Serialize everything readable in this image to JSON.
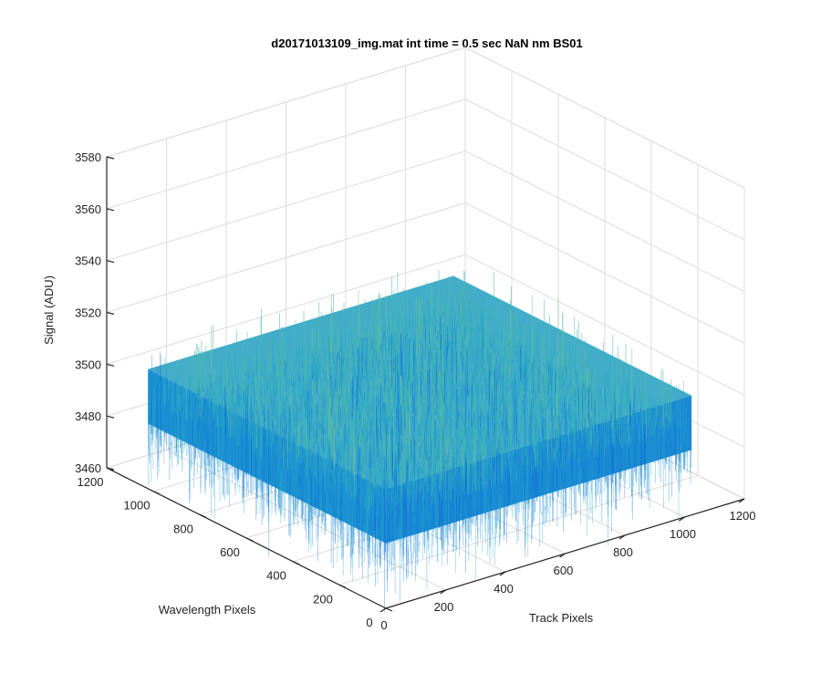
{
  "chart_data": {
    "type": "surface",
    "title": "d20171013109_img.mat int time = 0.5 sec  NaN nm BS01",
    "xlabel": "Track Pixels",
    "ylabel": "Wavelength Pixels",
    "zlabel": "Signal (ADU)",
    "xlim": [
      0,
      1200
    ],
    "ylim": [
      0,
      1200
    ],
    "zlim": [
      3460,
      3580
    ],
    "x_ticks": [
      "0",
      "200",
      "400",
      "600",
      "800",
      "1000",
      "1200"
    ],
    "y_ticks": [
      "0",
      "200",
      "400",
      "600",
      "800",
      "1000",
      "1200"
    ],
    "z_ticks": [
      "3460",
      "3480",
      "3500",
      "3520",
      "3540",
      "3560",
      "3580"
    ],
    "data_extent": {
      "x": [
        1,
        1024
      ],
      "y": [
        1,
        1024
      ]
    },
    "signal_mean": 3497,
    "signal_spread": [
      3470,
      3530
    ],
    "grid": true,
    "colormap": [
      "#0b6fd8",
      "#1b8fd3",
      "#2aa8c6",
      "#4fb8aa",
      "#7cc78c"
    ]
  }
}
